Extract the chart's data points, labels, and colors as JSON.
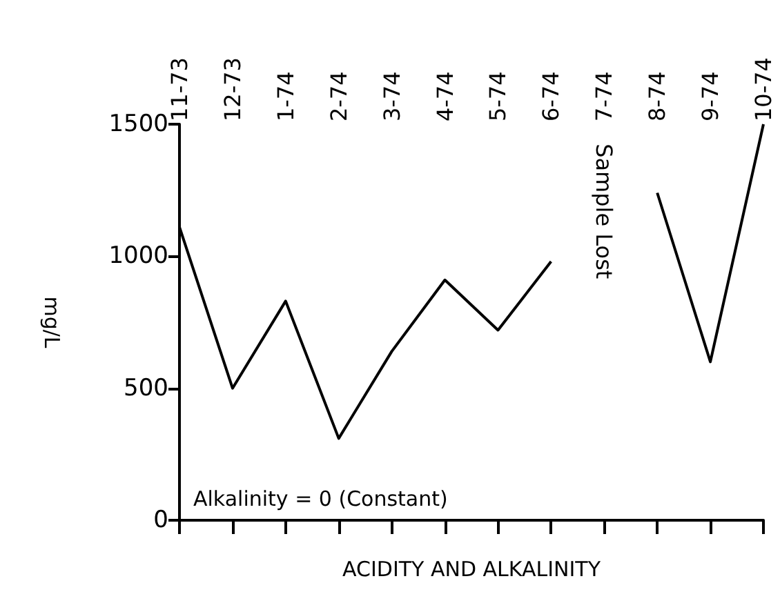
{
  "chart_data": {
    "type": "line",
    "categories": [
      "11-73",
      "12-73",
      "1-74",
      "2-74",
      "3-74",
      "4-74",
      "5-74",
      "6-74",
      "7-74",
      "8-74",
      "9-74",
      "10-74"
    ],
    "series": [
      {
        "color": "#000000",
        "values": [
          1110,
          500,
          830,
          310,
          640,
          910,
          720,
          980,
          null,
          1240,
          600,
          1500
        ]
      }
    ],
    "ylim": [
      0,
      1500
    ],
    "yticks": [
      0,
      500,
      1000,
      1500
    ],
    "xlabel": "ACIDITY AND ALKALINITY",
    "ylabel": "mg/L",
    "annotations": [
      "Alkalinity = 0 (Constant)",
      "Sample Lost"
    ],
    "grid": false,
    "marker": "none",
    "line_style": "solid"
  }
}
